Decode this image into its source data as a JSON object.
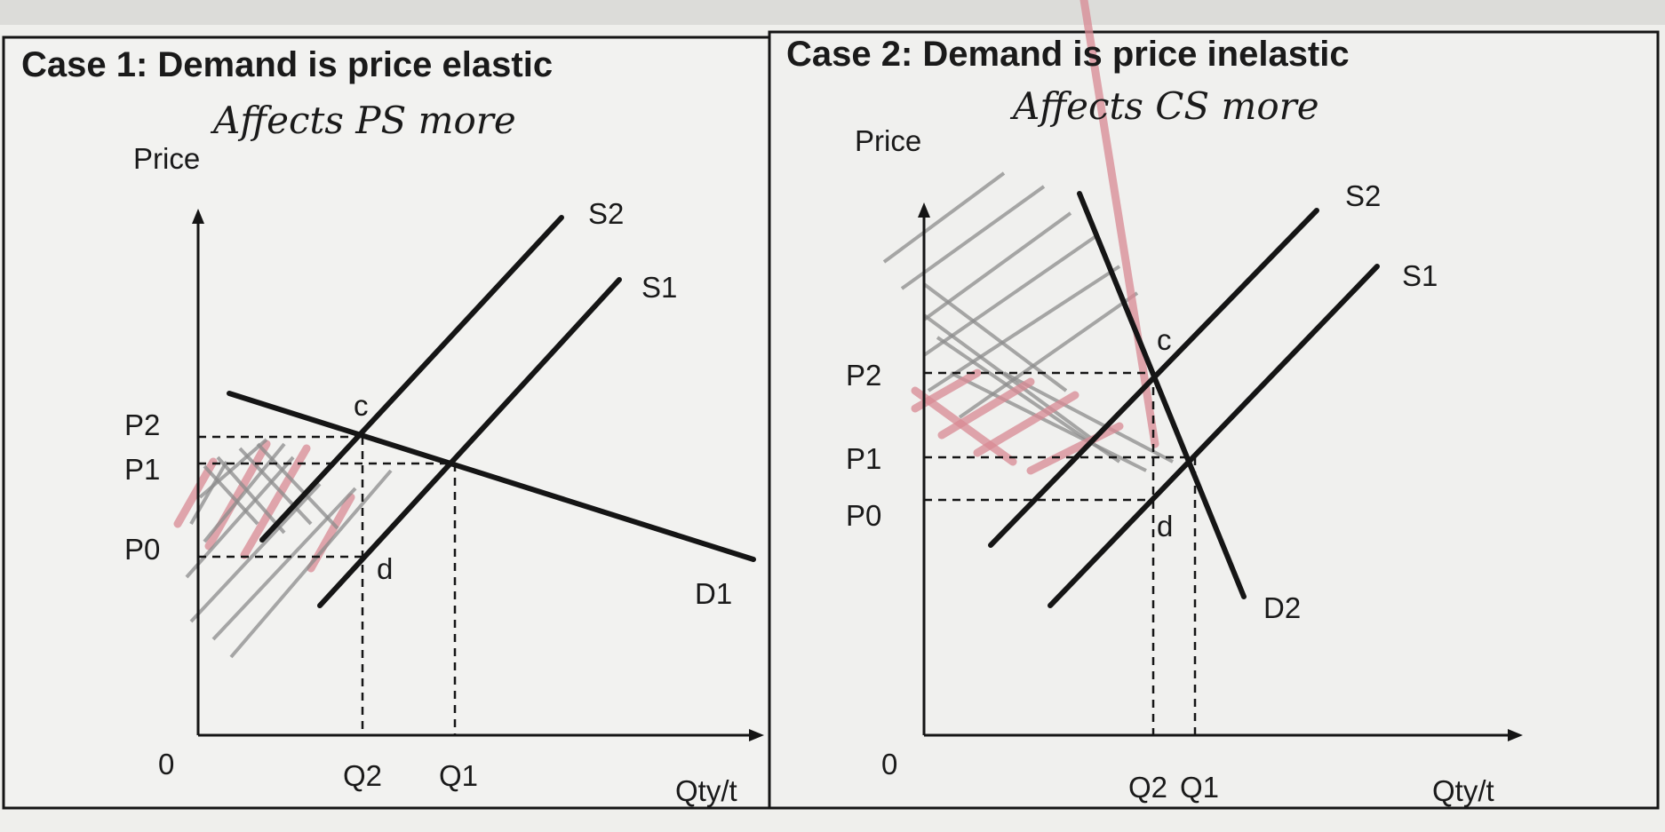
{
  "panels": [
    {
      "title": "Case 1: Demand is price elastic",
      "note": "Affects PS more",
      "y_axis_label": "Price",
      "x_axis_label": "Qty/t",
      "origin_label": "0",
      "price_labels": {
        "p2": "P2",
        "p1": "P1",
        "p0": "P0"
      },
      "qty_labels": {
        "q2": "Q2",
        "q1": "Q1"
      },
      "curve_labels": {
        "supply_new": "S2",
        "supply_old": "S1",
        "demand": "D1"
      },
      "point_labels": {
        "c": "c",
        "d": "d"
      }
    },
    {
      "title": "Case 2: Demand is price inelastic",
      "note": "Affects CS more",
      "y_axis_label": "Price",
      "x_axis_label": "Qty/t",
      "origin_label": "0",
      "price_labels": {
        "p2": "P2",
        "p1": "P1",
        "p0": "P0"
      },
      "qty_labels": {
        "q2": "Q2",
        "q1": "Q1"
      },
      "curve_labels": {
        "supply_new": "S2",
        "supply_old": "S1",
        "demand": "D2"
      },
      "point_labels": {
        "c": "c",
        "d": "d"
      }
    }
  ],
  "colors": {
    "paper": "#f2f2f0",
    "ink": "#151515",
    "pencil_hatch": "#8c8c8c",
    "red_hatch": "#d98a94"
  }
}
